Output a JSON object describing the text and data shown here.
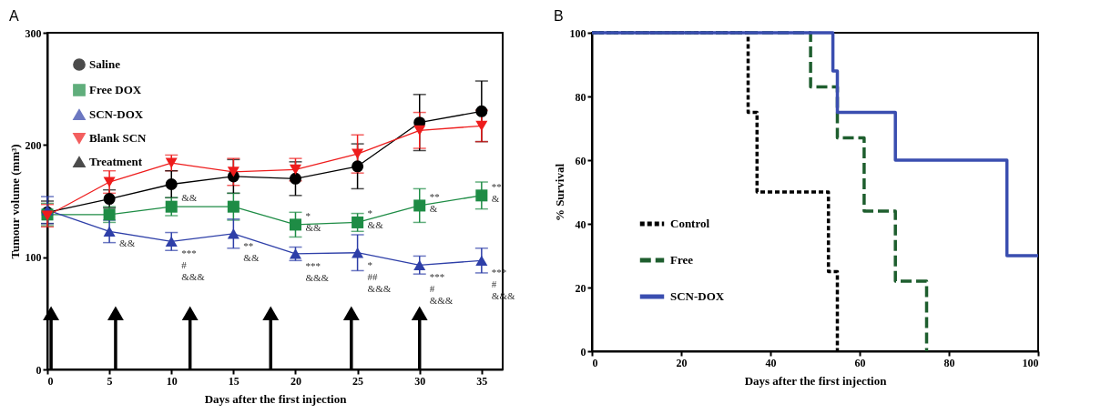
{
  "chart_data": [
    {
      "type": "line",
      "title": "A",
      "xlabel": "Days after the first injection",
      "ylabel": "Tumour volume (mm³)",
      "x": [
        0,
        5,
        10,
        15,
        20,
        25,
        30,
        35
      ],
      "xlim": [
        0,
        36.7
      ],
      "xticks": [
        0,
        5,
        10,
        15,
        20,
        25,
        30,
        35
      ],
      "ylim": [
        0,
        300
      ],
      "yticks": [
        0,
        100,
        200,
        300
      ],
      "legend": "top left",
      "grid": false,
      "series": [
        {
          "name": "Saline",
          "color": "#000000",
          "marker": "circle",
          "values": [
            140,
            152,
            165,
            172,
            170,
            181,
            220,
            230
          ],
          "errors": [
            10,
            8,
            12,
            15,
            15,
            20,
            25,
            27
          ]
        },
        {
          "name": "Free DOX",
          "color": "#1e8c45",
          "marker": "square",
          "values": [
            138,
            138,
            145,
            145,
            129,
            131,
            146,
            155
          ],
          "errors": [
            10,
            7,
            8,
            12,
            11,
            8,
            15,
            12
          ],
          "value_labels": [
            null,
            null,
            "&&",
            null,
            "*\n&&",
            "*\n&&",
            "**\n&",
            "**\n&"
          ]
        },
        {
          "name": "SCN-DOX",
          "color": "#2e3fa8",
          "marker": "triangle",
          "values": [
            142,
            123,
            114,
            121,
            103,
            104,
            93,
            97
          ],
          "errors": [
            12,
            10,
            8,
            13,
            6,
            16,
            8,
            11
          ],
          "value_labels": [
            null,
            "&&",
            "***\n#\n&&&",
            "**\n&&",
            "***\n&&&",
            "*\n##\n&&&",
            "***\n#\n&&&",
            "***\n#\n&&&"
          ]
        },
        {
          "name": "Blank SCN",
          "color": "#ee1c1c",
          "marker": "triangle-down",
          "values": [
            137,
            167,
            184,
            176,
            178,
            192,
            213,
            217
          ],
          "errors": [
            10,
            10,
            7,
            12,
            10,
            17,
            16,
            14
          ]
        },
        {
          "name": "Treatment",
          "type": "lollipop",
          "color": "#000000",
          "marker": "triangle",
          "x": [
            0.3,
            5.5,
            11.5,
            18,
            24.5,
            30
          ],
          "values": [
            50,
            50,
            50,
            50,
            50,
            50
          ]
        }
      ]
    },
    {
      "type": "step",
      "title": "B",
      "xlabel": "Days after the first injection",
      "ylabel": "% Survival",
      "xlim": [
        0,
        100
      ],
      "xticks": [
        0,
        20,
        40,
        60,
        80,
        100
      ],
      "ylim": [
        0,
        100
      ],
      "yticks": [
        0,
        20,
        40,
        60,
        80,
        100
      ],
      "legend": "bottom left",
      "grid": false,
      "series": [
        {
          "name": "Control",
          "color": "#000000",
          "line_style": "dotted",
          "x": [
            0,
            35,
            37,
            53,
            55
          ],
          "values": [
            100,
            75,
            50,
            25,
            0
          ]
        },
        {
          "name": "Free",
          "color": "#1e5e2e",
          "line_style": "dashed",
          "x": [
            0,
            49,
            55,
            61,
            68,
            75
          ],
          "values": [
            100,
            83,
            67,
            44,
            22,
            0
          ]
        },
        {
          "name": "SCN-DOX",
          "color": "#3a4eb0",
          "line_style": "solid",
          "x": [
            0,
            54,
            55,
            68,
            93,
            100
          ],
          "values": [
            100,
            88,
            75,
            60,
            30,
            30
          ]
        }
      ]
    }
  ]
}
